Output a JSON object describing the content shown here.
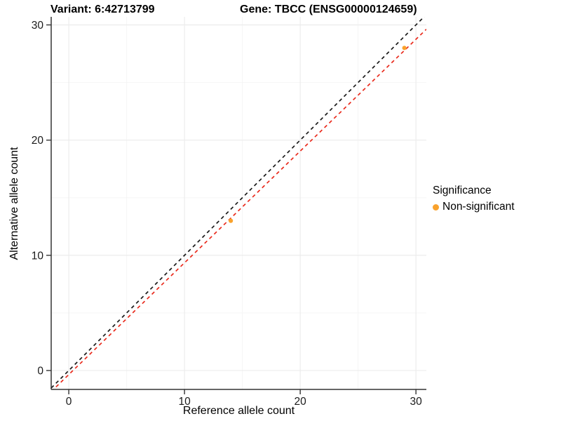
{
  "titles": {
    "variant": "Variant: 6:42713799",
    "gene": "Gene: TBCC (ENSG00000124659)"
  },
  "axes": {
    "x_label": "Reference allele count",
    "y_label": "Alternative allele count"
  },
  "legend": {
    "title": "Significance",
    "items": [
      {
        "label": "Non-significant",
        "color": "#F9A22C"
      }
    ]
  },
  "colors": {
    "background": "#FFFFFF",
    "point_orange": "#F9A22C",
    "identity_line": "#1A1A1A",
    "fit_line": "#E92A1C",
    "grid_major": "#ECECEC",
    "grid_minor": "#F5F5F5",
    "axis_line": "#333333",
    "tick_label": "#1A1A1A"
  },
  "chart_data": {
    "type": "scatter",
    "title_left": "Variant: 6:42713799",
    "title_right": "Gene: TBCC (ENSG00000124659)",
    "xlabel": "Reference allele count",
    "ylabel": "Alternative allele count",
    "xlim": [
      -1.52,
      30.9
    ],
    "ylim": [
      -1.64,
      30.7
    ],
    "x_ticks": [
      0,
      10,
      20,
      30
    ],
    "y_ticks": [
      0,
      10,
      20,
      30
    ],
    "x_minor": [
      5,
      15,
      25
    ],
    "y_minor": [
      5,
      15,
      25
    ],
    "grid": "major+minor",
    "legend_position": "right",
    "series": [
      {
        "name": "Non-significant",
        "color": "#F9A22C",
        "points": [
          {
            "x": 14,
            "y": 13
          },
          {
            "x": 29,
            "y": 28
          }
        ]
      }
    ],
    "lines": [
      {
        "name": "identity",
        "slope": 1.0,
        "intercept": 0.0,
        "style": "dashed",
        "color": "#1A1A1A"
      },
      {
        "name": "fit",
        "slope": 0.97,
        "intercept": -0.35,
        "style": "dashed",
        "color": "#E92A1C"
      }
    ]
  }
}
